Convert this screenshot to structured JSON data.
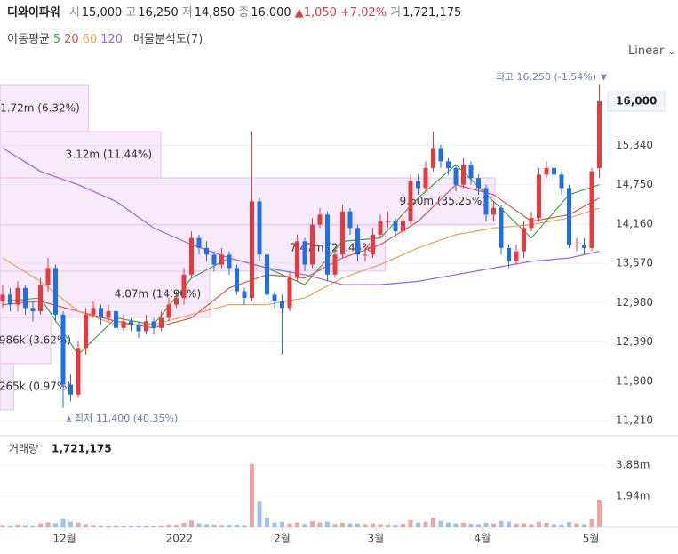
{
  "header": {
    "name": "디와이파워",
    "quote": [
      {
        "label": "시",
        "value": "15,000"
      },
      {
        "label": "고",
        "value": "16,250"
      },
      {
        "label": "저",
        "value": "14,850"
      },
      {
        "label": "종",
        "value": "16,000"
      }
    ],
    "change": "1,050",
    "change_pct": "+7.02%",
    "volume_label": "거",
    "volume": "1,721,175"
  },
  "indicators": {
    "ma_label": "이동평균",
    "profile_label": "매물분석도(7)"
  },
  "scale_menu": "Linear",
  "chart_data": [
    {
      "type": "candlestick",
      "up_color": "#e8393f",
      "down_color": "#1f6fe5",
      "ylim": [
        10983,
        16320
      ],
      "yticks": [
        {
          "value": 11210,
          "label": "11,210"
        },
        {
          "value": 11800,
          "label": "11,800"
        },
        {
          "value": 12390,
          "label": "12,390"
        },
        {
          "value": 12980,
          "label": "12,980"
        },
        {
          "value": 13570,
          "label": "13,570"
        },
        {
          "value": 14160,
          "label": "14,160"
        },
        {
          "value": 14750,
          "label": "14,750"
        },
        {
          "value": 15340,
          "label": "15,340"
        }
      ],
      "current_price": {
        "value": 16000,
        "label": "16,000"
      },
      "high_annotation": "최고 16,250 (-1.54%)",
      "low_annotation": "최저 11,400 (40.35%)",
      "open": [
        13000,
        13100,
        12950,
        13200,
        12900,
        12850,
        13250,
        13500,
        12800,
        11750,
        11600,
        12300,
        12800,
        12900,
        12750,
        12850,
        12600,
        12700,
        12650,
        12550,
        12700,
        12600,
        12750,
        12950,
        13050,
        13400,
        13950,
        13800,
        13700,
        13550,
        13700,
        13500,
        13150,
        13050,
        14500,
        13700,
        13100,
        13000,
        12900,
        13350,
        13900,
        13550,
        14150,
        14300,
        13400,
        13700,
        14350,
        14100,
        13700,
        13700,
        14000,
        14200,
        14200,
        14050,
        14200,
        14800,
        14700,
        15000,
        15300,
        15100,
        15000,
        14750,
        15050,
        14850,
        14700,
        14300,
        14400,
        13800,
        13600,
        13750,
        14100,
        14250,
        14900,
        15000,
        14900,
        14700,
        13850,
        13850,
        13800,
        15000
      ],
      "high": [
        13250,
        13200,
        13300,
        13250,
        13000,
        13350,
        13650,
        13550,
        12850,
        11900,
        12400,
        12900,
        13000,
        12950,
        12950,
        12900,
        12800,
        12750,
        12700,
        12800,
        12750,
        12850,
        13050,
        13150,
        13500,
        14050,
        14000,
        13900,
        13750,
        13800,
        13750,
        13550,
        13200,
        15550,
        14550,
        13750,
        13150,
        13100,
        13450,
        14000,
        13950,
        14250,
        14400,
        14350,
        13800,
        14450,
        14400,
        14150,
        13850,
        14100,
        14300,
        14350,
        14250,
        14300,
        14900,
        14900,
        15100,
        15550,
        15350,
        15150,
        15050,
        15150,
        15100,
        14900,
        14750,
        14500,
        14450,
        13850,
        13850,
        14200,
        14350,
        15000,
        15100,
        15050,
        14950,
        14750,
        13950,
        13950,
        15000,
        16250
      ],
      "low": [
        12900,
        12850,
        12850,
        12800,
        12700,
        12800,
        13150,
        12700,
        11400,
        11500,
        11550,
        12200,
        12750,
        12650,
        12700,
        12550,
        12550,
        12550,
        12450,
        12500,
        12500,
        12550,
        12700,
        12900,
        12950,
        13350,
        13700,
        13600,
        13450,
        13500,
        13400,
        13100,
        12950,
        13000,
        13600,
        13000,
        12900,
        12200,
        12850,
        13300,
        13450,
        13500,
        14100,
        13300,
        13350,
        13650,
        14000,
        13600,
        13600,
        13650,
        13950,
        14100,
        13950,
        13950,
        14150,
        14600,
        14650,
        14950,
        15000,
        14900,
        14650,
        14700,
        14750,
        14600,
        14200,
        14200,
        13700,
        13500,
        13550,
        13650,
        14050,
        14200,
        14850,
        14800,
        14600,
        13800,
        13750,
        13700,
        13750,
        14850
      ],
      "close": [
        13100,
        12950,
        13200,
        12900,
        12850,
        13250,
        13500,
        12800,
        11750,
        11600,
        12300,
        12800,
        12900,
        12750,
        12850,
        12600,
        12700,
        12650,
        12550,
        12700,
        12600,
        12750,
        12950,
        13050,
        13400,
        13950,
        13800,
        13700,
        13550,
        13700,
        13500,
        13150,
        13050,
        14500,
        13700,
        13100,
        13000,
        12900,
        13350,
        13900,
        13550,
        14150,
        14300,
        13400,
        13700,
        14350,
        14100,
        13700,
        13700,
        14000,
        14200,
        14200,
        14050,
        14200,
        14800,
        14700,
        15000,
        15300,
        15100,
        15000,
        14750,
        15050,
        14850,
        14700,
        14300,
        14400,
        13800,
        13600,
        13750,
        14100,
        14250,
        14900,
        15000,
        14900,
        14700,
        13850,
        13850,
        13800,
        14950,
        16000
      ],
      "series": [
        {
          "name": "5",
          "color": "#3daa3d",
          "x": [
            0,
            5,
            10,
            15,
            20,
            25,
            30,
            35,
            40,
            45,
            50,
            55,
            60,
            65,
            70,
            75,
            79
          ],
          "values": [
            13000,
            13050,
            12200,
            12750,
            12650,
            13350,
            13650,
            13500,
            13250,
            13900,
            13950,
            14550,
            15050,
            14500,
            13950,
            14600,
            14750
          ]
        },
        {
          "name": "20",
          "color": "#e05050",
          "x": [
            0,
            5,
            10,
            15,
            20,
            25,
            30,
            35,
            40,
            45,
            50,
            55,
            60,
            65,
            70,
            75,
            79
          ],
          "values": [
            12950,
            13000,
            12850,
            12700,
            12600,
            12750,
            13200,
            13400,
            13350,
            13650,
            13850,
            14200,
            14750,
            14600,
            14200,
            14300,
            14550
          ]
        },
        {
          "name": "60",
          "color": "#f0a050",
          "x": [
            0,
            5,
            10,
            15,
            20,
            25,
            30,
            35,
            40,
            45,
            50,
            55,
            60,
            65,
            70,
            75,
            79
          ],
          "values": [
            13650,
            13300,
            12850,
            12650,
            12650,
            12800,
            12950,
            12950,
            13050,
            13350,
            13550,
            13800,
            14000,
            14100,
            14150,
            14250,
            14400
          ]
        },
        {
          "name": "120",
          "color": "#9966dd",
          "x": [
            0,
            5,
            10,
            15,
            20,
            25,
            30,
            35,
            40,
            45,
            50,
            55,
            60,
            65,
            70,
            75,
            79
          ],
          "values": [
            15300,
            14950,
            14750,
            14500,
            14100,
            13850,
            13650,
            13500,
            13400,
            13250,
            13250,
            13300,
            13400,
            13500,
            13600,
            13650,
            13750
          ]
        }
      ],
      "profile": {
        "color": "#e8c2f0",
        "bins": [
          11371,
          12065,
          12759,
          13452,
          14146,
          14852,
          15546,
          16240
        ],
        "volumes": [
          265000,
          986000,
          4070000,
          7470000,
          9600000,
          3120000,
          1720000
        ],
        "value_labels": [
          "265k (0.97%)",
          "986k (3.62%)",
          "4.07m (14.96%)",
          "7.47m (27.44%)",
          "9.60m (35.25%)",
          "3.12m (11.44%)",
          "1.72m (6.32%)"
        ]
      }
    },
    {
      "type": "volume-bar",
      "title": "거래량",
      "current_label": "1,721,175",
      "up_color": "#f4a3a3",
      "down_color": "#9cc3f0",
      "ylim": [
        0,
        5710000
      ],
      "yticks": [
        {
          "value": 1940000,
          "label": "1.94m"
        },
        {
          "value": 3880000,
          "label": "3.88m"
        }
      ],
      "xticks": [
        {
          "value": 8.2,
          "label": "12월"
        },
        {
          "value": 23.4,
          "label": "2022"
        },
        {
          "value": 37,
          "label": "2월"
        },
        {
          "value": 49.4,
          "label": "3월"
        },
        {
          "value": 63.5,
          "label": "4월"
        },
        {
          "value": 77.9,
          "label": "5월"
        }
      ],
      "values": [
        150000,
        120000,
        180000,
        140000,
        120000,
        250000,
        300000,
        260000,
        520000,
        350000,
        300000,
        200000,
        150000,
        120000,
        110000,
        130000,
        100000,
        110000,
        120000,
        110000,
        100000,
        120000,
        180000,
        160000,
        280000,
        420000,
        250000,
        200000,
        180000,
        150000,
        160000,
        170000,
        150000,
        3950000,
        1650000,
        600000,
        300000,
        350000,
        250000,
        300000,
        220000,
        380000,
        300000,
        350000,
        200000,
        280000,
        250000,
        230000,
        200000,
        240000,
        200000,
        180000,
        170000,
        220000,
        450000,
        300000,
        350000,
        600000,
        400000,
        300000,
        250000,
        280000,
        230000,
        200000,
        280000,
        220000,
        400000,
        350000,
        230000,
        250000,
        200000,
        350000,
        280000,
        200000,
        180000,
        330000,
        250000,
        200000,
        500000,
        1721175
      ]
    }
  ]
}
